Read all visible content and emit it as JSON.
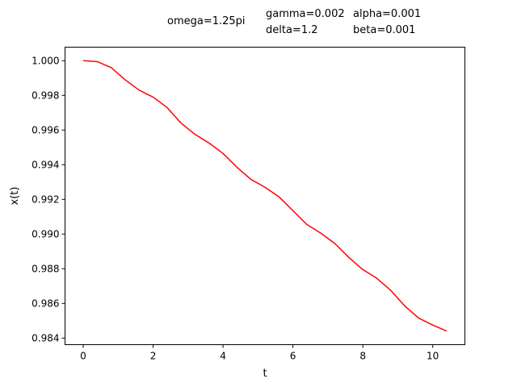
{
  "annotations": {
    "omega": "omega=1.25pi",
    "gamma": "gamma=0.002",
    "delta": "delta=1.2",
    "alpha": "alpha=0.001",
    "beta": "beta=0.001"
  },
  "chart_data": {
    "type": "line",
    "title": "",
    "xlabel": "t",
    "ylabel": "x(t)",
    "xlim": [
      -0.52,
      10.92
    ],
    "ylim": [
      0.98362,
      1.00078
    ],
    "xticks": [
      0,
      2,
      4,
      6,
      8,
      10
    ],
    "xtick_labels": [
      "0",
      "2",
      "4",
      "6",
      "8",
      "10"
    ],
    "yticks": [
      0.984,
      0.986,
      0.988,
      0.99,
      0.992,
      0.994,
      0.996,
      0.998,
      1.0
    ],
    "ytick_labels": [
      "0.984",
      "0.986",
      "0.988",
      "0.990",
      "0.992",
      "0.994",
      "0.996",
      "0.998",
      "1.000"
    ],
    "grid": false,
    "series": [
      {
        "color": "#ff0000",
        "x": [
          0,
          0.4,
          0.8,
          1.2,
          1.6,
          2.0,
          2.4,
          2.8,
          3.2,
          3.6,
          4.0,
          4.4,
          4.8,
          5.2,
          5.6,
          6.0,
          6.4,
          6.8,
          7.2,
          7.6,
          8.0,
          8.4,
          8.8,
          9.2,
          9.6,
          10.0,
          10.4
        ],
        "y": [
          1.0,
          0.99995,
          0.9996,
          0.9989,
          0.9983,
          0.9979,
          0.9973,
          0.9964,
          0.99575,
          0.99525,
          0.99465,
          0.99385,
          0.99315,
          0.9927,
          0.99215,
          0.99135,
          0.99055,
          0.99005,
          0.98945,
          0.98865,
          0.98795,
          0.98745,
          0.98675,
          0.98585,
          0.98515,
          0.98475,
          0.9844
        ]
      }
    ]
  }
}
